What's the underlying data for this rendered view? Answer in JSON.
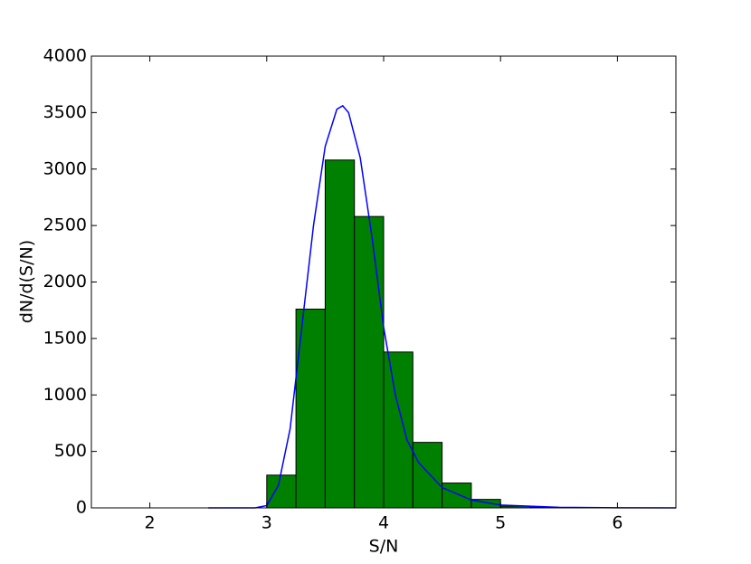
{
  "chart_data": {
    "type": "histogram",
    "x_label": "S/N",
    "y_label": "dN/d(S/N)",
    "bins": [
      3.0,
      3.25,
      3.5,
      3.75,
      4.0,
      4.25,
      4.5,
      4.75,
      5.0,
      5.25,
      5.5,
      5.75
    ],
    "counts": [
      290,
      1760,
      3080,
      2580,
      1380,
      580,
      220,
      75,
      15,
      5,
      2
    ],
    "color": "#008000",
    "curve": {
      "type": "line",
      "color": "#0000ff",
      "x": [
        2.5,
        2.9,
        3.0,
        3.1,
        3.2,
        3.3,
        3.4,
        3.5,
        3.6,
        3.65,
        3.7,
        3.8,
        3.9,
        4.0,
        4.1,
        4.2,
        4.3,
        4.5,
        4.75,
        5.0,
        5.5,
        6.0,
        6.5
      ],
      "values": [
        0,
        0,
        20,
        200,
        700,
        1600,
        2500,
        3200,
        3530,
        3560,
        3500,
        3100,
        2400,
        1600,
        1000,
        600,
        400,
        180,
        70,
        25,
        5,
        1,
        0
      ]
    },
    "xlim": [
      1.5,
      6.5
    ],
    "xticks": [
      2,
      3,
      4,
      5,
      6
    ],
    "ylim": [
      0,
      4000
    ],
    "yticks": [
      0,
      500,
      1000,
      1500,
      2000,
      2500,
      3000,
      3500,
      4000
    ]
  }
}
